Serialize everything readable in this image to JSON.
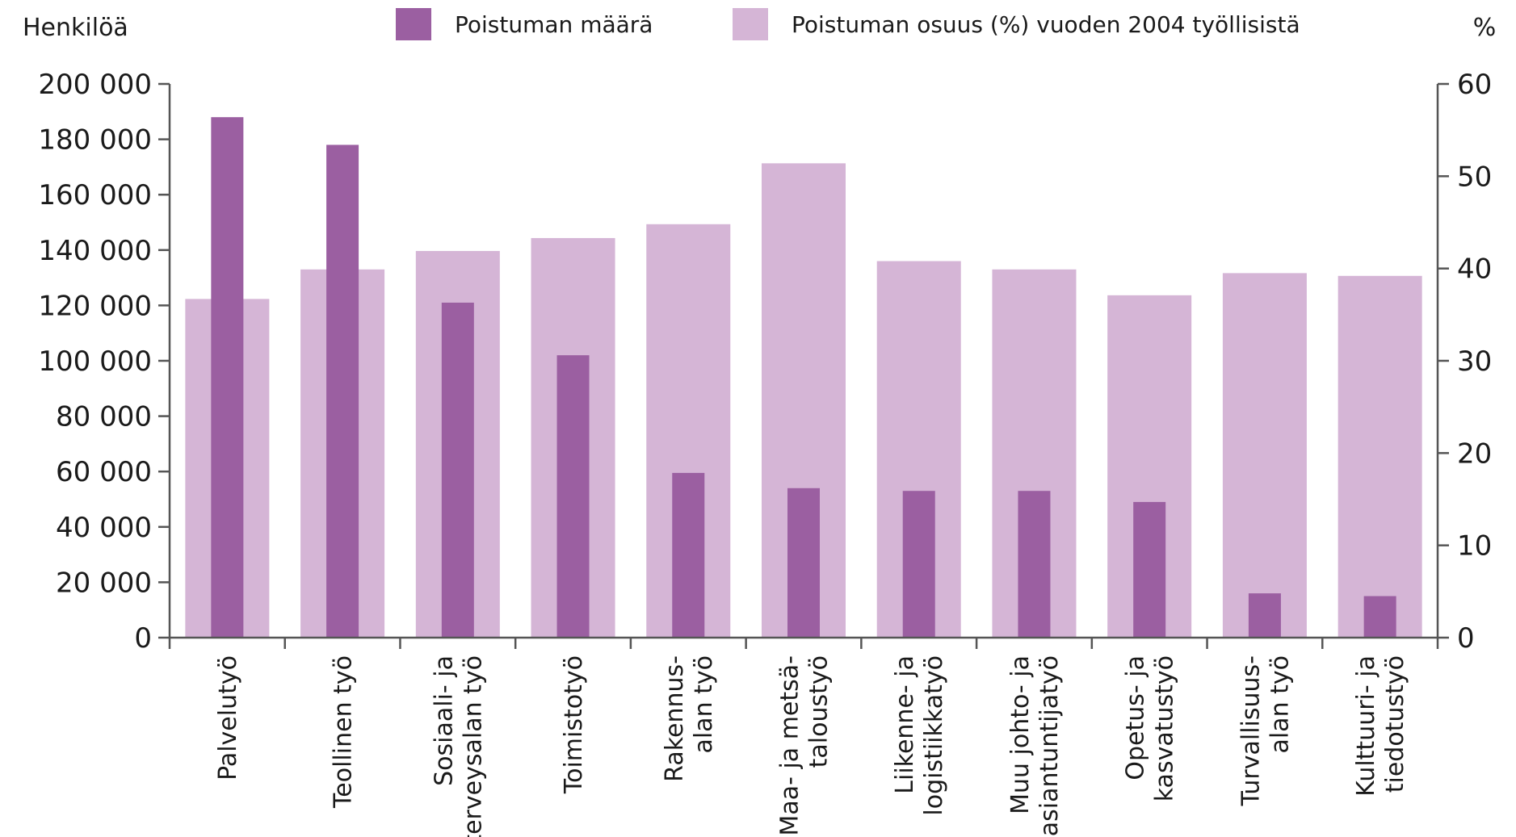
{
  "chart_data": {
    "type": "bar",
    "y_left_label": "Henkilöä",
    "y_right_label": "%",
    "categories": [
      [
        "Palvelutyö"
      ],
      [
        "Teollinen työ"
      ],
      [
        "Sosiaali- ja",
        "terveysalan työ"
      ],
      [
        "Toimistotyö"
      ],
      [
        "Rakennus-",
        "alan työ"
      ],
      [
        "Maa- ja metsä-",
        "taloustyö"
      ],
      [
        "Liikenne- ja",
        "logistiikkatyö"
      ],
      [
        "Muu johto- ja",
        "asiantuntijatyö"
      ],
      [
        "Opetus- ja",
        "kasvatustyö"
      ],
      [
        "Turvallisuus-",
        "alan työ"
      ],
      [
        "Kulttuuri- ja",
        "tiedotustyö"
      ]
    ],
    "series": [
      {
        "name": "Poistuman määrä",
        "axis": "left",
        "color": "#9b5fa1",
        "values": [
          188000,
          178000,
          121000,
          102000,
          59500,
          54000,
          53000,
          53000,
          49000,
          16000,
          15000
        ]
      },
      {
        "name": "Poistuman osuus (%) vuoden 2004 työllisistä",
        "axis": "right",
        "color": "#d5b5d6",
        "values": [
          36.7,
          39.9,
          41.9,
          43.3,
          44.8,
          51.4,
          40.8,
          39.9,
          37.1,
          39.5,
          39.2
        ]
      }
    ],
    "y_left": {
      "min": 0,
      "max": 200000,
      "step": 20000,
      "tick_labels": [
        "0",
        "20 000",
        "40 000",
        "60 000",
        "80 000",
        "100 000",
        "120 000",
        "140 000",
        "160 000",
        "180 000",
        "200 000"
      ]
    },
    "y_right": {
      "min": 0,
      "max": 60,
      "step": 10,
      "tick_labels": [
        "0",
        "10",
        "20",
        "30",
        "40",
        "50",
        "60"
      ]
    },
    "grid": false,
    "legend_position": "top"
  }
}
